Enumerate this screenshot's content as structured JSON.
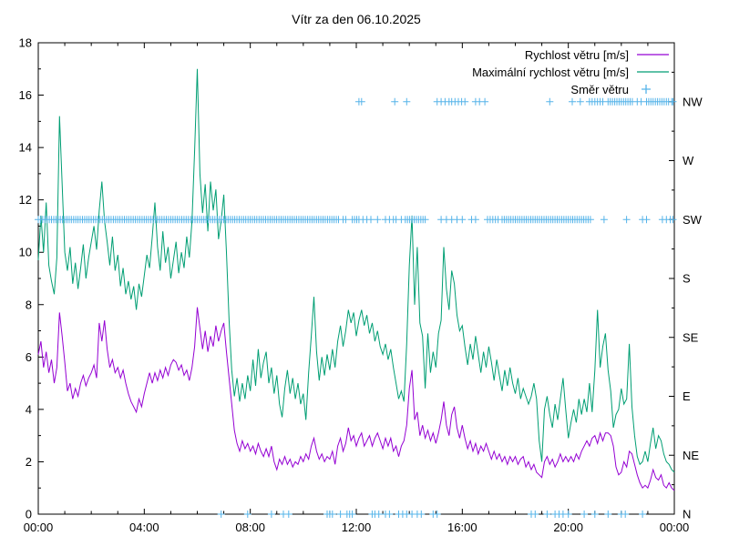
{
  "chart_data": {
    "type": "line",
    "title": "Vítr za den 06.10.2025",
    "legend_position": "top-right",
    "x_axis": {
      "range_hours": [
        0,
        24
      ],
      "major_tick_hours": [
        0,
        4,
        8,
        12,
        16,
        20,
        24
      ],
      "tick_labels": [
        "00:00",
        "04:00",
        "08:00",
        "12:00",
        "16:00",
        "20:00",
        "00:00"
      ],
      "minor_step_hours": 1
    },
    "y_axis": {
      "range": [
        0,
        18
      ],
      "major_step": 2,
      "minor_step": 1,
      "tick_labels": [
        "0",
        "2",
        "4",
        "6",
        "8",
        "10",
        "12",
        "14",
        "16",
        "18"
      ]
    },
    "y2_axis": {
      "labels": [
        "N",
        "NE",
        "E",
        "SE",
        "S",
        "SW",
        "W",
        "NW"
      ],
      "values": [
        0,
        2.25,
        4.5,
        6.75,
        9,
        11.25,
        13.5,
        15.75
      ],
      "minor_step": 1.125
    },
    "series": [
      {
        "name": "Rychlost větru [m/s]",
        "color": "#9400D3",
        "x_start_hours": 0,
        "x_step_hours": 0.1,
        "values": [
          6.1,
          6.6,
          5.6,
          6.2,
          5.4,
          5.9,
          5.0,
          5.6,
          7.7,
          6.8,
          5.8,
          4.7,
          5.0,
          4.4,
          4.8,
          4.5,
          5.0,
          5.3,
          4.9,
          5.2,
          5.4,
          5.7,
          5.2,
          7.3,
          6.6,
          7.4,
          6.3,
          5.6,
          5.9,
          5.4,
          5.6,
          5.2,
          5.5,
          5.0,
          4.6,
          4.3,
          4.1,
          3.9,
          4.4,
          4.1,
          4.6,
          5.0,
          5.4,
          5.0,
          5.4,
          5.1,
          5.5,
          5.2,
          5.6,
          5.3,
          5.7,
          5.9,
          5.8,
          5.5,
          5.7,
          5.3,
          5.5,
          5.1,
          5.6,
          6.4,
          7.9,
          7.1,
          6.3,
          7.0,
          6.2,
          6.8,
          6.4,
          7.2,
          6.6,
          7.0,
          7.3,
          6.2,
          5.2,
          4.2,
          3.2,
          2.7,
          2.4,
          2.8,
          2.5,
          2.7,
          2.4,
          2.6,
          2.3,
          2.7,
          2.4,
          2.2,
          2.5,
          2.2,
          2.6,
          2.0,
          1.7,
          2.1,
          1.9,
          2.2,
          1.9,
          2.1,
          1.8,
          2.0,
          1.9,
          2.2,
          2.0,
          2.3,
          2.1,
          2.6,
          2.9,
          2.4,
          2.1,
          2.3,
          2.0,
          2.2,
          2.1,
          2.4,
          1.9,
          2.6,
          2.9,
          2.4,
          2.7,
          3.3,
          2.8,
          3.0,
          2.6,
          2.9,
          3.1,
          2.6,
          2.8,
          3.0,
          2.6,
          2.9,
          3.1,
          2.8,
          2.5,
          2.9,
          2.6,
          2.9,
          2.4,
          2.6,
          2.2,
          2.6,
          2.8,
          3.4,
          4.8,
          5.5,
          3.6,
          3.9,
          3.0,
          3.4,
          2.9,
          3.2,
          2.8,
          3.1,
          2.7,
          3.1,
          3.6,
          4.3,
          3.4,
          3.0,
          3.8,
          4.1,
          3.3,
          2.9,
          3.4,
          2.9,
          2.5,
          2.8,
          2.4,
          2.7,
          2.3,
          2.6,
          2.4,
          2.7,
          2.4,
          2.1,
          2.4,
          2.1,
          2.3,
          2.0,
          2.2,
          1.9,
          2.2,
          2.0,
          2.2,
          1.9,
          2.1,
          2.2,
          1.8,
          2.0,
          1.7,
          1.9,
          1.6,
          1.5,
          1.4,
          2.0,
          2.2,
          1.9,
          2.1,
          1.8,
          2.0,
          2.3,
          2.0,
          2.2,
          2.0,
          2.2,
          2.0,
          2.3,
          2.1,
          2.4,
          2.6,
          2.8,
          2.6,
          2.9,
          3.0,
          2.7,
          3.1,
          2.8,
          3.1,
          3.1,
          3.0,
          2.6,
          1.8,
          1.5,
          1.6,
          2.0,
          1.8,
          2.4,
          2.3,
          1.9,
          1.5,
          1.2,
          1.0,
          1.1,
          1.0,
          1.3,
          1.7,
          1.4,
          1.3,
          1.5,
          1.1,
          1.0,
          1.2,
          1.0,
          0.9
        ]
      },
      {
        "name": "Maximální rychlost větru [m/s]",
        "color": "#009E73",
        "x_start_hours": 0,
        "x_step_hours": 0.1,
        "values": [
          9.7,
          11.4,
          10.0,
          11.9,
          9.5,
          8.9,
          8.4,
          9.8,
          15.2,
          12.6,
          10.0,
          9.3,
          10.2,
          8.8,
          9.6,
          8.6,
          9.4,
          10.3,
          9.0,
          9.8,
          10.4,
          11.0,
          10.1,
          11.6,
          12.7,
          11.2,
          10.4,
          9.5,
          10.6,
          9.3,
          9.9,
          8.7,
          9.4,
          8.4,
          8.9,
          8.2,
          8.7,
          7.8,
          8.8,
          8.3,
          9.1,
          9.9,
          9.4,
          10.6,
          11.9,
          10.2,
          9.3,
          10.8,
          9.6,
          10.2,
          9.0,
          9.7,
          10.4,
          9.2,
          10.0,
          9.4,
          10.6,
          9.8,
          11.2,
          13.9,
          17.0,
          13.0,
          11.5,
          12.6,
          10.8,
          12.7,
          11.6,
          12.4,
          10.5,
          11.2,
          12.2,
          10.0,
          7.4,
          5.5,
          4.5,
          5.2,
          4.3,
          5.0,
          4.4,
          5.3,
          4.7,
          5.9,
          4.9,
          6.3,
          5.2,
          5.8,
          6.2,
          5.0,
          5.6,
          4.6,
          5.3,
          4.2,
          3.7,
          4.8,
          5.5,
          4.6,
          5.2,
          4.4,
          5.0,
          4.2,
          4.6,
          3.6,
          5.4,
          6.8,
          8.3,
          6.2,
          5.1,
          6.0,
          5.3,
          6.1,
          5.5,
          6.3,
          5.6,
          6.6,
          7.2,
          6.4,
          7.0,
          7.8,
          7.3,
          7.7,
          6.8,
          7.4,
          7.8,
          7.2,
          7.6,
          6.9,
          7.3,
          6.6,
          7.0,
          6.4,
          6.1,
          6.5,
          5.9,
          6.3,
          5.6,
          5.0,
          4.4,
          4.7,
          4.3,
          6.5,
          9.5,
          11.4,
          8.0,
          10.2,
          7.3,
          6.8,
          4.8,
          6.9,
          5.4,
          6.2,
          5.6,
          6.9,
          7.4,
          10.2,
          8.6,
          7.8,
          9.3,
          8.8,
          7.6,
          7.0,
          7.2,
          6.4,
          5.7,
          6.5,
          5.9,
          6.8,
          6.1,
          5.4,
          6.2,
          5.6,
          6.4,
          5.8,
          5.1,
          5.9,
          5.3,
          4.7,
          5.5,
          4.9,
          5.6,
          5.0,
          4.6,
          5.2,
          4.4,
          4.8,
          4.5,
          4.2,
          4.5,
          5.0,
          4.4,
          2.8,
          2.0,
          4.0,
          4.5,
          3.8,
          3.3,
          4.2,
          3.6,
          4.4,
          5.2,
          4.0,
          2.9,
          3.5,
          4.0,
          3.5,
          4.4,
          3.8,
          4.4,
          3.9,
          5.0,
          3.9,
          5.5,
          7.8,
          5.6,
          6.4,
          6.9,
          5.5,
          4.7,
          3.3,
          3.8,
          4.0,
          4.8,
          4.2,
          4.4,
          6.5,
          4.1,
          3.0,
          2.2,
          1.9,
          2.0,
          2.4,
          2.0,
          2.7,
          3.3,
          2.5,
          3.0,
          2.8,
          2.3,
          2.0,
          1.9,
          1.7,
          1.6
        ]
      }
    ],
    "direction_series": {
      "name": "Směr větru",
      "color": "#56B4E9",
      "marker": "+",
      "direction_values": {
        "N": 0,
        "NE": 2.25,
        "E": 4.5,
        "SE": 6.75,
        "S": 9,
        "SW": 11.25,
        "W": 13.5,
        "NW": 15.75
      },
      "points": {
        "SW": {
          "dense_ranges": [
            [
              0,
              11.4,
              0.0833
            ],
            [
              11.85,
              12.1,
              0.0833
            ],
            [
              13.85,
              14.6,
              0.0833
            ],
            [
              16.95,
              17.4,
              0.1
            ],
            [
              17.5,
              20.85,
              0.0833
            ]
          ],
          "hours": [
            11.5,
            11.6,
            12.25,
            12.4,
            12.55,
            12.8,
            13.1,
            13.25,
            13.4,
            13.5,
            13.7,
            15.2,
            15.4,
            15.6,
            15.8,
            16.0,
            16.35,
            16.5,
            21.35,
            22.2,
            22.8,
            22.95,
            23.55,
            23.7,
            23.85,
            23.95
          ]
        },
        "NW": {
          "dense_ranges": [
            [
              15.05,
              15.5,
              0.15
            ],
            [
              15.6,
              16.1,
              0.125
            ],
            [
              20.8,
              21.3,
              0.1
            ],
            [
              21.5,
              22.45,
              0.0833
            ],
            [
              22.95,
              23.8,
              0.0833
            ]
          ],
          "hours": [
            12.1,
            12.2,
            13.45,
            13.9,
            16.5,
            16.65,
            16.85,
            19.3,
            20.15,
            20.45,
            22.6,
            22.75,
            23.9,
            23.95
          ]
        },
        "N": {
          "dense_ranges": [],
          "hours": [
            6.9,
            7.9,
            8.8,
            9.25,
            9.45,
            10.9,
            11.0,
            11.1,
            11.4,
            11.65,
            11.75,
            11.85,
            12.6,
            12.7,
            12.85,
            13.1,
            13.25,
            13.6,
            13.75,
            13.9,
            14.1,
            14.3,
            14.45,
            14.9,
            15.05,
            18.6,
            18.75,
            19.2,
            19.5,
            19.65,
            19.8,
            20.0,
            20.6,
            21.0,
            21.5,
            22.0,
            22.15,
            22.8
          ]
        }
      }
    }
  }
}
